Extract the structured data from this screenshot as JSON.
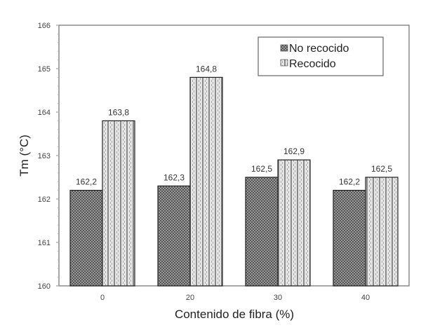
{
  "chart_data": {
    "type": "bar",
    "title": "",
    "xlabel": "Contenido de fibra (%)",
    "ylabel": "Tm (°C)",
    "categories": [
      "0",
      "20",
      "30",
      "40"
    ],
    "series": [
      {
        "name": "No recocido",
        "values": [
          162.2,
          162.3,
          162.5,
          162.2
        ],
        "labels": [
          "162,2",
          "162,3",
          "162,5",
          "162,2"
        ]
      },
      {
        "name": "Recocido",
        "values": [
          163.8,
          164.8,
          162.9,
          162.5
        ],
        "labels": [
          "163,8",
          "164,8",
          "162,9",
          "162,5"
        ]
      }
    ],
    "ylim": [
      160,
      166
    ],
    "yticks": [
      "160",
      "161",
      "162",
      "163",
      "164",
      "165",
      "166"
    ],
    "grid": false,
    "legend_position": "upper right (inside)"
  },
  "colors": {
    "no_recocido": "#4a4a4a",
    "recocido": "#cfcfcf",
    "axis": "#888888"
  }
}
